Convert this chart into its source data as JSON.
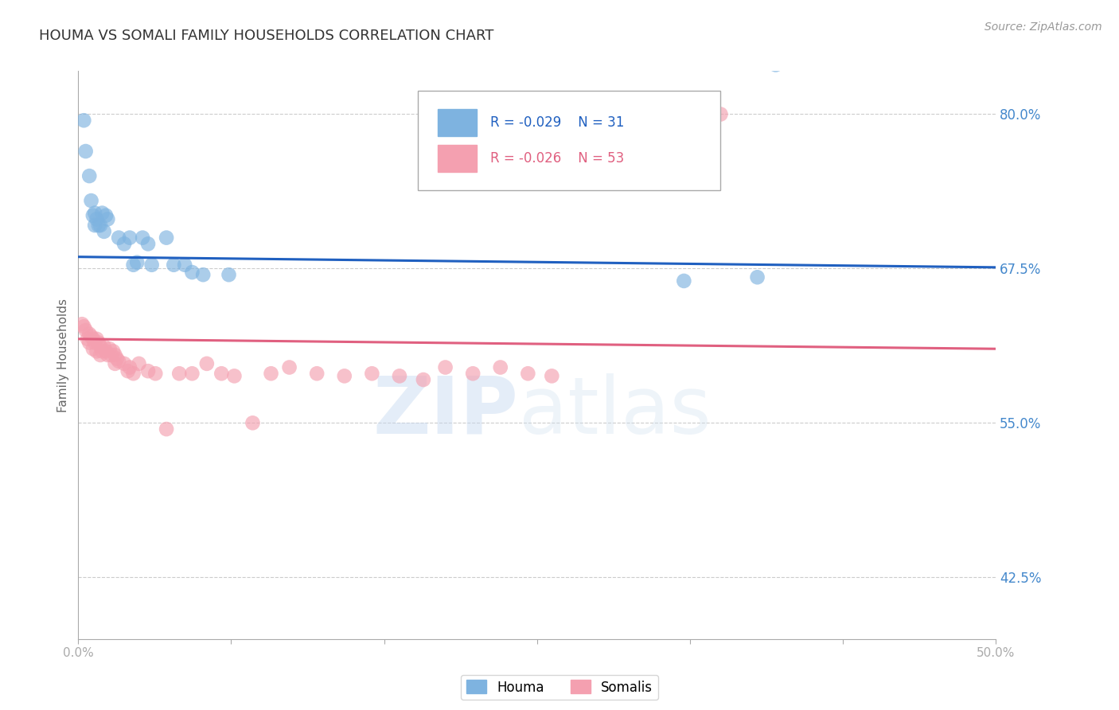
{
  "title": "HOUMA VS SOMALI FAMILY HOUSEHOLDS CORRELATION CHART",
  "source": "Source: ZipAtlas.com",
  "ylabel": "Family Households",
  "xlim": [
    0.0,
    0.5
  ],
  "ylim": [
    0.375,
    0.835
  ],
  "yticks": [
    0.425,
    0.55,
    0.675,
    0.8
  ],
  "ytick_labels": [
    "42.5%",
    "55.0%",
    "67.5%",
    "80.0%"
  ],
  "xticks": [
    0.0,
    0.0833,
    0.1667,
    0.25,
    0.3333,
    0.4167,
    0.5
  ],
  "xtick_labels": [
    "0.0%",
    "",
    "",
    "",
    "",
    "",
    "50.0%"
  ],
  "houma_color": "#7eb3e0",
  "somali_color": "#f4a0b0",
  "houma_line_color": "#2060c0",
  "somali_line_color": "#e06080",
  "R_houma": -0.029,
  "N_houma": 31,
  "R_somali": -0.026,
  "N_somali": 53,
  "background_color": "#ffffff",
  "grid_color": "#cccccc",
  "axis_color": "#aaaaaa",
  "tick_label_color": "#4488cc",
  "title_color": "#333333",
  "houma_x": [
    0.003,
    0.004,
    0.006,
    0.007,
    0.008,
    0.009,
    0.009,
    0.01,
    0.011,
    0.012,
    0.013,
    0.014,
    0.015,
    0.016,
    0.022,
    0.025,
    0.028,
    0.03,
    0.032,
    0.035,
    0.038,
    0.04,
    0.048,
    0.052,
    0.058,
    0.062,
    0.068,
    0.082,
    0.33,
    0.37,
    0.38
  ],
  "houma_y": [
    0.795,
    0.77,
    0.75,
    0.73,
    0.718,
    0.72,
    0.71,
    0.715,
    0.71,
    0.71,
    0.72,
    0.705,
    0.718,
    0.715,
    0.7,
    0.695,
    0.7,
    0.678,
    0.68,
    0.7,
    0.695,
    0.678,
    0.7,
    0.678,
    0.678,
    0.672,
    0.67,
    0.67,
    0.665,
    0.668,
    0.84
  ],
  "somali_x": [
    0.002,
    0.003,
    0.004,
    0.005,
    0.006,
    0.006,
    0.007,
    0.008,
    0.008,
    0.009,
    0.01,
    0.01,
    0.011,
    0.012,
    0.012,
    0.013,
    0.014,
    0.015,
    0.016,
    0.017,
    0.018,
    0.019,
    0.02,
    0.02,
    0.021,
    0.022,
    0.025,
    0.027,
    0.028,
    0.03,
    0.033,
    0.038,
    0.042,
    0.048,
    0.055,
    0.062,
    0.07,
    0.078,
    0.085,
    0.095,
    0.105,
    0.115,
    0.13,
    0.145,
    0.16,
    0.175,
    0.188,
    0.2,
    0.215,
    0.23,
    0.245,
    0.258,
    0.35
  ],
  "somali_y": [
    0.63,
    0.628,
    0.625,
    0.618,
    0.622,
    0.615,
    0.62,
    0.618,
    0.61,
    0.615,
    0.618,
    0.608,
    0.615,
    0.612,
    0.605,
    0.608,
    0.612,
    0.608,
    0.605,
    0.61,
    0.605,
    0.608,
    0.605,
    0.598,
    0.602,
    0.6,
    0.598,
    0.592,
    0.595,
    0.59,
    0.598,
    0.592,
    0.59,
    0.545,
    0.59,
    0.59,
    0.598,
    0.59,
    0.588,
    0.55,
    0.59,
    0.595,
    0.59,
    0.588,
    0.59,
    0.588,
    0.585,
    0.595,
    0.59,
    0.595,
    0.59,
    0.588,
    0.8
  ],
  "houma_trend_x": [
    0.0,
    0.5
  ],
  "houma_trend_y": [
    0.6845,
    0.676
  ],
  "somali_trend_x": [
    0.0,
    0.5
  ],
  "somali_trend_y": [
    0.618,
    0.61
  ]
}
